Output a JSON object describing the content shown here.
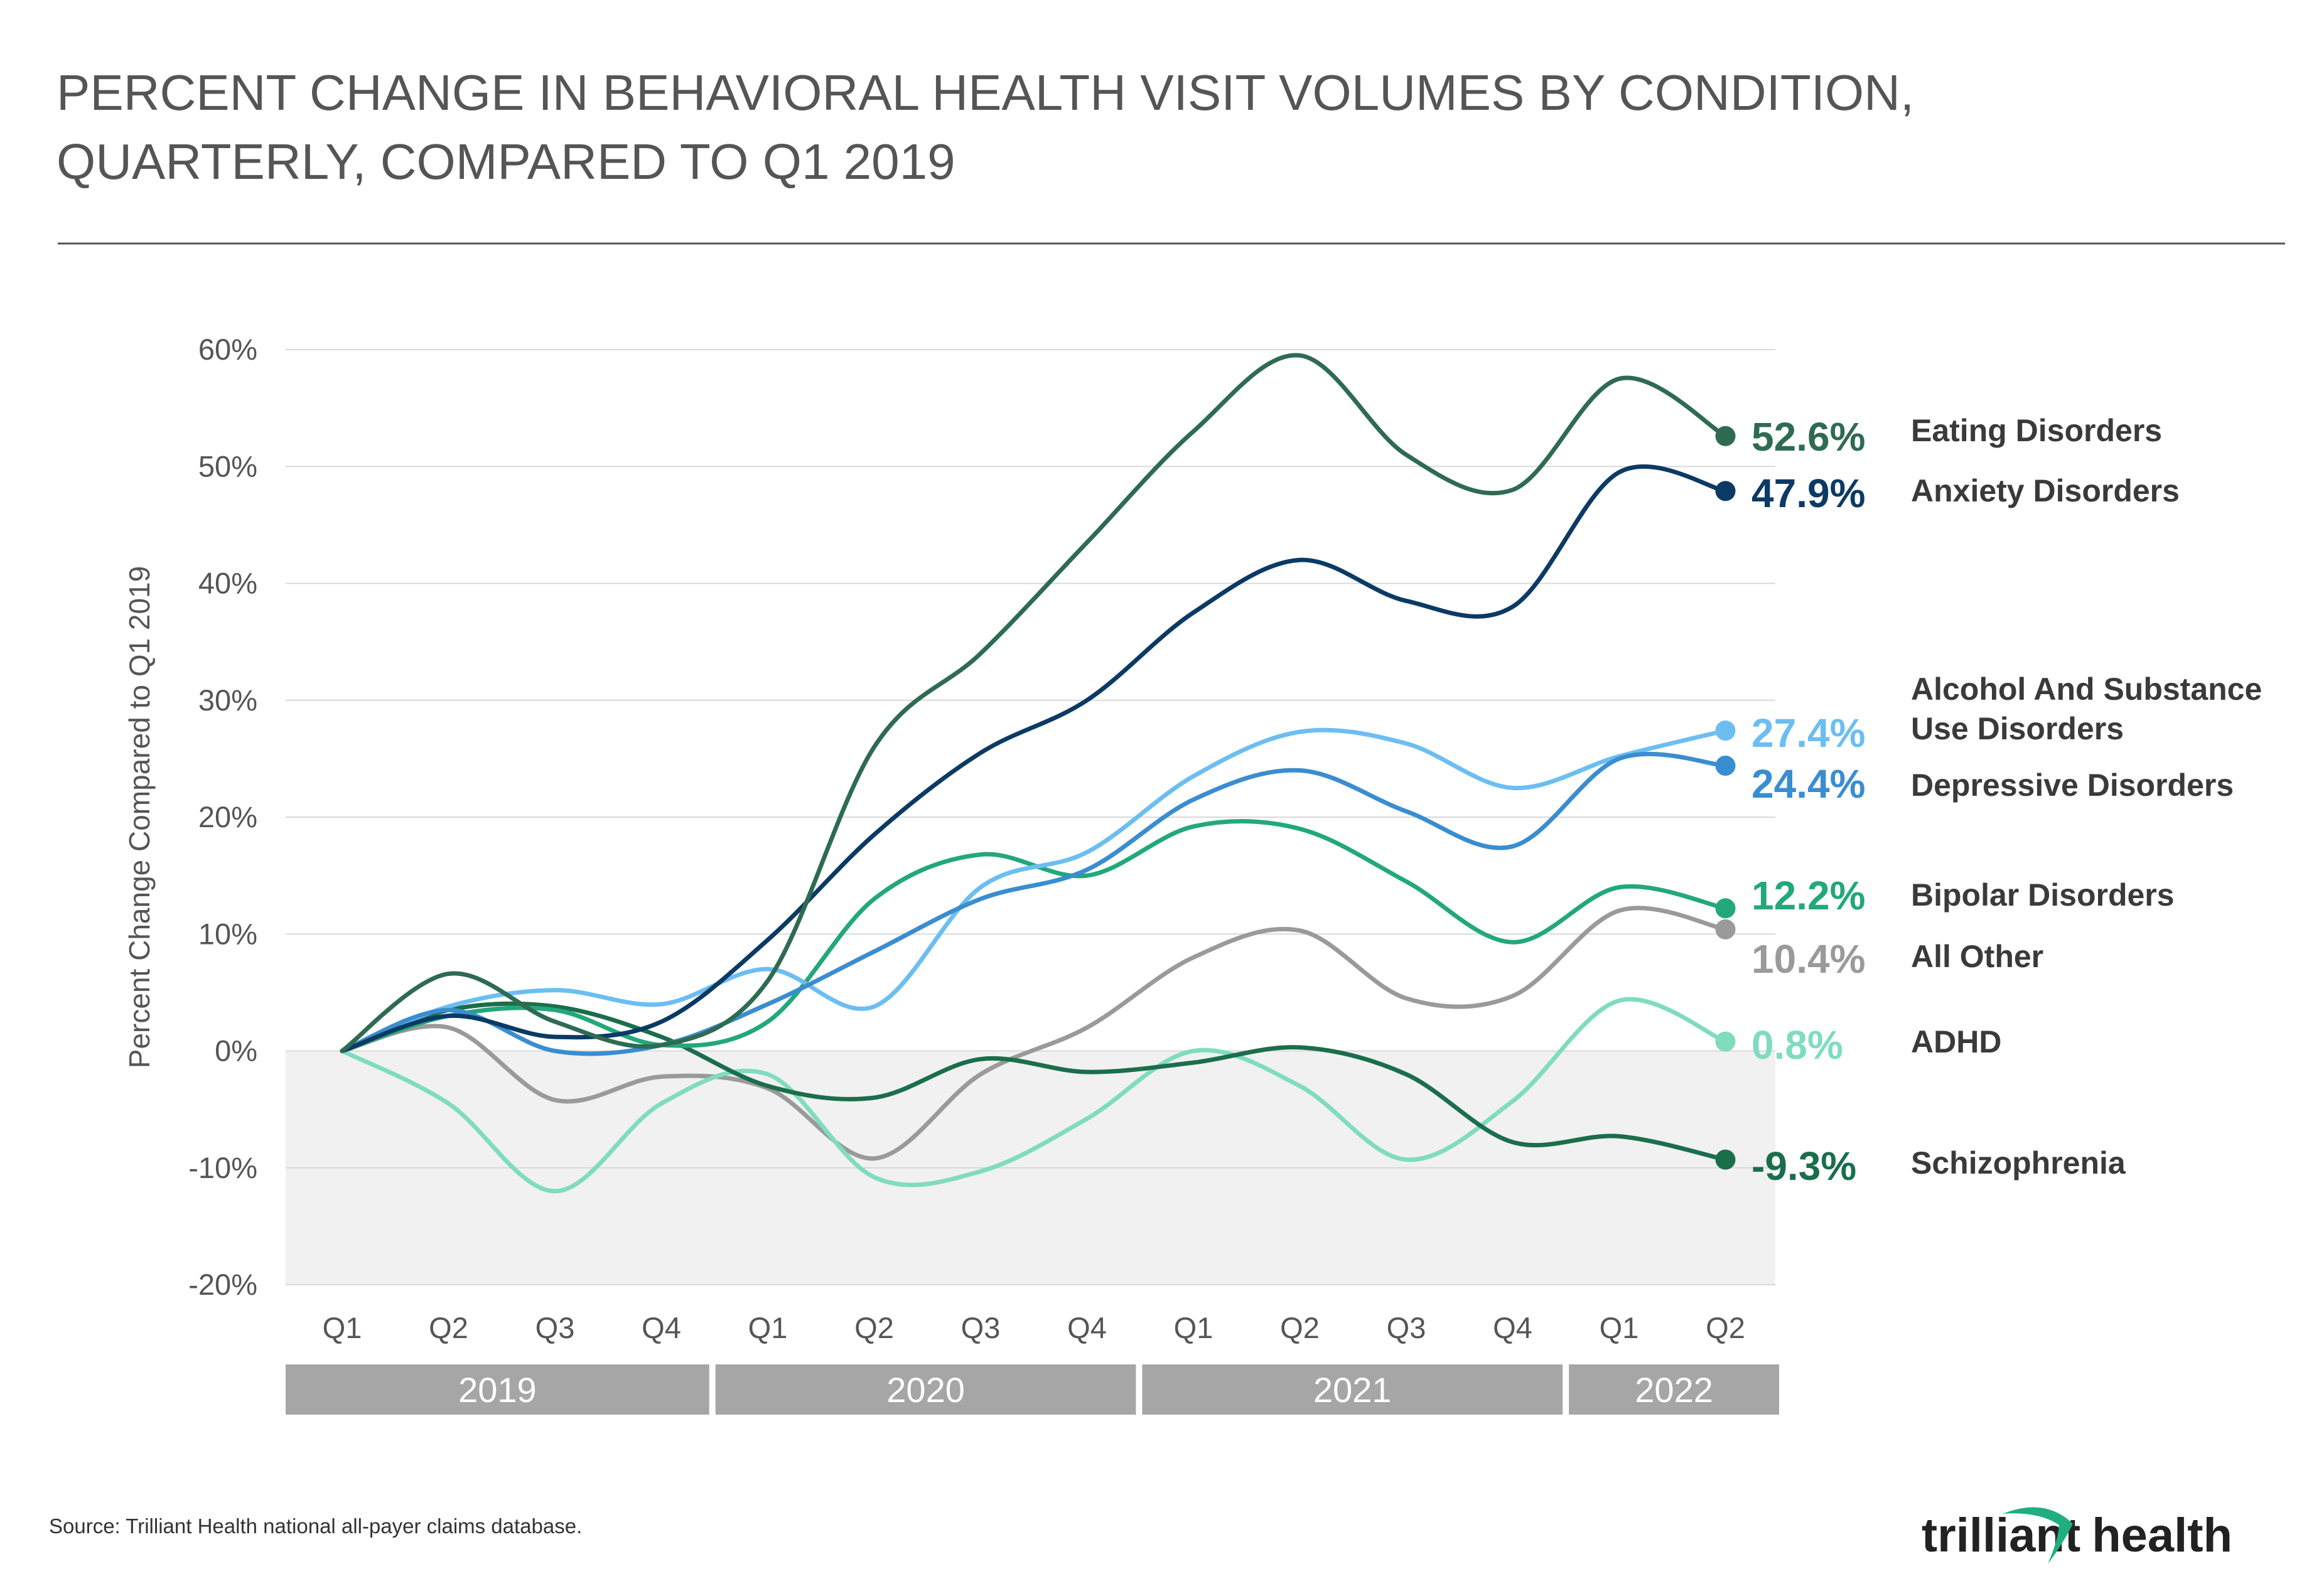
{
  "title_lines": [
    "PERCENT CHANGE IN BEHAVIORAL HEALTH VISIT VOLUMES BY CONDITION,",
    "QUARTERLY, COMPARED TO Q1 2019"
  ],
  "source": "Source: Trilliant Health national all-payer claims database.",
  "logo": {
    "part1": "trilliant",
    "part2": "health",
    "accent_color": "#1fae7f"
  },
  "chart_data": {
    "type": "line",
    "ylabel": "Percent Change Compared to Q1 2019",
    "ylim": [
      -20,
      60
    ],
    "yticks": [
      -20,
      -10,
      0,
      10,
      20,
      30,
      40,
      50,
      60
    ],
    "ytick_labels": [
      "-20%",
      "-10%",
      "0%",
      "10%",
      "20%",
      "30%",
      "40%",
      "50%",
      "60%"
    ],
    "grid": true,
    "negative_region_shaded": true,
    "x": [
      "Q1",
      "Q2",
      "Q3",
      "Q4",
      "Q1",
      "Q2",
      "Q3",
      "Q4",
      "Q1",
      "Q2",
      "Q3",
      "Q4",
      "Q1",
      "Q2"
    ],
    "years": [
      {
        "label": "2019",
        "start": 0,
        "end": 3
      },
      {
        "label": "2020",
        "start": 4,
        "end": 7
      },
      {
        "label": "2021",
        "start": 8,
        "end": 11
      },
      {
        "label": "2022",
        "start": 12,
        "end": 13
      }
    ],
    "series": [
      {
        "name": "Eating Disorders",
        "end_label": "52.6%",
        "color": "#2e6b52",
        "values": [
          0,
          6.6,
          2.5,
          0.5,
          6,
          26,
          34,
          43.5,
          53,
          59.5,
          51,
          48,
          57.5,
          52.6
        ]
      },
      {
        "name": "Anxiety Disorders",
        "end_label": "47.9%",
        "color": "#0b3a64",
        "values": [
          0,
          3,
          1.2,
          2.5,
          9.5,
          18.5,
          25.5,
          30,
          37.5,
          42,
          38.5,
          38,
          49.5,
          47.9
        ]
      },
      {
        "name": "Alcohol And Substance Use Disorders",
        "end_label": "27.4%",
        "color": "#6cbef2",
        "values": [
          0,
          3.8,
          5.2,
          4,
          7,
          3.8,
          14,
          17,
          23.5,
          27.3,
          26.3,
          22.5,
          25.2,
          27.4
        ]
      },
      {
        "name": "Depressive Disorders",
        "end_label": "24.4%",
        "color": "#3a8dd0",
        "values": [
          0,
          3.5,
          0,
          0.5,
          4,
          8.5,
          13,
          15.5,
          21.5,
          24,
          20.5,
          17.5,
          25,
          24.4
        ]
      },
      {
        "name": "Bipolar Disorders",
        "end_label": "12.2%",
        "color": "#22a87b",
        "values": [
          0,
          3,
          3.5,
          0.5,
          2.5,
          13,
          16.8,
          15,
          19.2,
          19,
          14.5,
          9.3,
          14,
          12.2
        ]
      },
      {
        "name": "All Other",
        "end_label": "10.4%",
        "color": "#9a9a9a",
        "values": [
          0,
          2,
          -4.2,
          -2.2,
          -3.2,
          -9.2,
          -2,
          2,
          8,
          10.3,
          4.5,
          4.7,
          12,
          10.4
        ]
      },
      {
        "name": "ADHD",
        "end_label": "0.8%",
        "color": "#7fdcbf",
        "values": [
          0,
          -4.5,
          -12,
          -4.5,
          -2,
          -10.8,
          -10.3,
          -5.8,
          0,
          -3,
          -9.3,
          -4.3,
          4.3,
          0.8
        ]
      },
      {
        "name": "Schizophrenia",
        "end_label": "-9.3%",
        "color": "#1b6e4c",
        "values": [
          0,
          3.5,
          3.8,
          1.2,
          -3,
          -4,
          -0.7,
          -1.8,
          -1,
          0.3,
          -2,
          -7.8,
          -7.3,
          -9.3
        ]
      }
    ]
  }
}
